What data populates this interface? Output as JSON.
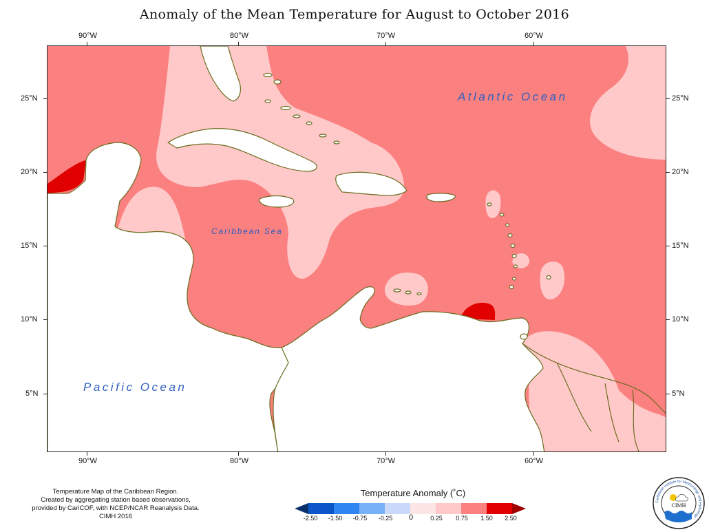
{
  "title": "Anomaly of the Mean Temperature for August to October 2016",
  "colors": {
    "anomaly_0_25_0_75": "#ffc9c9",
    "anomaly_0_75_1_50": "#fb8080",
    "anomaly_1_50_2_50": "#e00000",
    "coastline": "#6b6b1e",
    "land": "#ffffff",
    "ocean_label": "#2d5fbf"
  },
  "map": {
    "lon_labels": [
      "90°W",
      "80°W",
      "70°W",
      "60°W"
    ],
    "lat_labels": [
      "25°N",
      "20°N",
      "15°N",
      "10°N",
      "5°N"
    ],
    "place_labels": {
      "atlantic": "Atlantic Ocean",
      "caribbean": "Caribbean Sea",
      "pacific": "Pacific Ocean"
    }
  },
  "legend": {
    "title": "Temperature Anomaly (˚C)",
    "labels": [
      "-2.50",
      "-1.50",
      "-0.75",
      "-0.25",
      "0",
      "0.25",
      "0.75",
      "1.50",
      "2.50"
    ],
    "colors": [
      "#08306b",
      "#0a56c8",
      "#2f86f2",
      "#78b1f7",
      "#c8d9fb",
      "#fde5e5",
      "#ffc9c9",
      "#fb8080",
      "#e00000",
      "#a00000"
    ]
  },
  "credits": [
    "Temperature Map of the Caribbean Region.",
    "Created by aggregating station based observations,",
    "provided by CariCOF, with NCEP/NCAR Reanalysis Data.",
    "CIMH 2016"
  ],
  "logo": {
    "ring_text": "Caribbean Institute for Meteorology and Hydrology",
    "center_text": "CIMH"
  }
}
